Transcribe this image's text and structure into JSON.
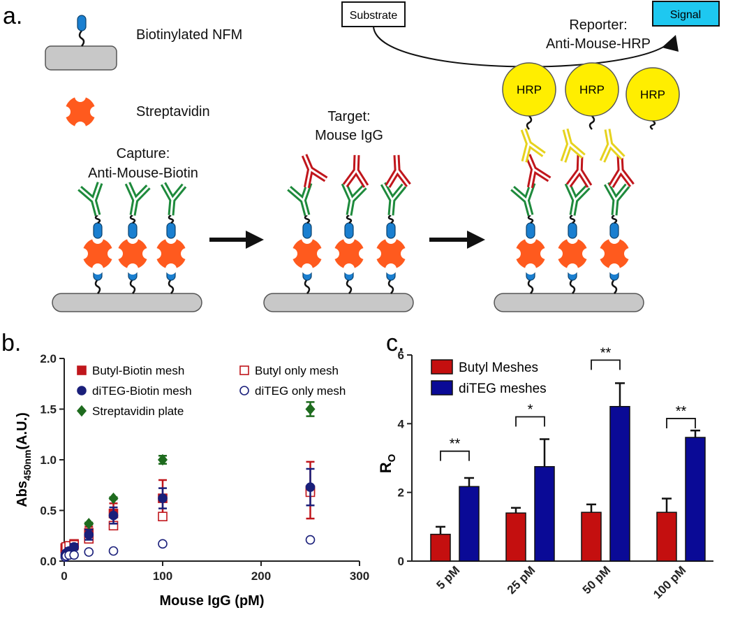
{
  "panel_labels": [
    "a.",
    "b.",
    "c."
  ],
  "diagram": {
    "legend": [
      "Biotinylated NFM",
      "Streptavidin"
    ],
    "capture": [
      "Capture:",
      "Anti-Mouse-Biotin"
    ],
    "target": [
      "Target:",
      "Mouse IgG"
    ],
    "reporter": [
      "Reporter:",
      "Anti-Mouse-HRP"
    ],
    "substrate": "Substrate",
    "signal": "Signal",
    "hrp": [
      "HRP",
      "HRP",
      "HRP"
    ]
  },
  "chart_data": [
    {
      "type": "scatter",
      "xlabel": "Mouse IgG (pM)",
      "ylabel": "Abs",
      "ylabel_sub": "450nm",
      "ylabel_suffix": "(A.U.)",
      "xlim": [
        0,
        300
      ],
      "xticks": [
        0,
        100,
        200,
        300
      ],
      "ylim": [
        0,
        2
      ],
      "yticks": [
        {
          "value": 0,
          "label": "0.0"
        },
        {
          "value": 0.5,
          "label": "0.5"
        },
        {
          "value": 1,
          "label": "1.0"
        },
        {
          "value": 1.5,
          "label": "1.5"
        },
        {
          "value": 2,
          "label": "2.0"
        }
      ],
      "series": [
        {
          "name": "Butyl-Biotin mesh",
          "color": "#c0161c",
          "marker": "square",
          "filled": true,
          "x": [
            1,
            2,
            5,
            10,
            25,
            50,
            100,
            250
          ],
          "values": [
            0.12,
            0.14,
            0.15,
            0.17,
            0.28,
            0.47,
            0.62,
            0.7
          ],
          "errors": [
            0.03,
            0.03,
            0.03,
            0.03,
            0.06,
            0.1,
            0.18,
            0.28
          ]
        },
        {
          "name": "Butyl only mesh",
          "color": "#c0161c",
          "marker": "square",
          "filled": false,
          "x": [
            1,
            2,
            5,
            10,
            25,
            50,
            100,
            250
          ],
          "values": [
            0.13,
            0.14,
            0.15,
            0.16,
            0.22,
            0.35,
            0.44,
            0.68
          ]
        },
        {
          "name": "diTEG-Biotin mesh",
          "color": "#1a1f7a",
          "marker": "circle",
          "filled": true,
          "x": [
            1,
            2,
            5,
            10,
            25,
            50,
            100,
            250
          ],
          "values": [
            0.06,
            0.08,
            0.1,
            0.14,
            0.26,
            0.45,
            0.62,
            0.73
          ],
          "errors": [
            0.02,
            0.02,
            0.03,
            0.03,
            0.05,
            0.08,
            0.1,
            0.18
          ]
        },
        {
          "name": "diTEG only mesh",
          "color": "#1a1f7a",
          "marker": "circle",
          "filled": false,
          "x": [
            1,
            2,
            5,
            10,
            25,
            50,
            100,
            250
          ],
          "values": [
            0.04,
            0.05,
            0.06,
            0.06,
            0.09,
            0.1,
            0.17,
            0.21
          ]
        },
        {
          "name": "Streptavidin plate",
          "color": "#1e6b1e",
          "marker": "diamond",
          "filled": true,
          "x": [
            25,
            50,
            100,
            250
          ],
          "values": [
            0.37,
            0.62,
            1.0,
            1.5
          ],
          "errors": [
            0.01,
            0.01,
            0.04,
            0.07
          ]
        }
      ]
    },
    {
      "type": "bar",
      "ylabel": "R",
      "ylabel_sub": "O",
      "categories": [
        "5 pM",
        "25 pM",
        "50 pM",
        "100 pM"
      ],
      "ylim": [
        0,
        6
      ],
      "yticks": [
        0,
        2,
        4,
        6
      ],
      "series": [
        {
          "name": "Butyl Meshes",
          "color": "#c40f0f",
          "values": [
            0.78,
            1.4,
            1.42,
            1.42
          ],
          "errors": [
            0.22,
            0.15,
            0.23,
            0.4
          ]
        },
        {
          "name": "diTEG meshes",
          "color": "#0a0a96",
          "values": [
            2.17,
            2.75,
            4.5,
            3.6
          ],
          "errors": [
            0.25,
            0.8,
            0.68,
            0.2
          ]
        }
      ],
      "significance": [
        {
          "label": "**",
          "y": 3.2
        },
        {
          "label": "*",
          "y": 4.2
        },
        {
          "label": "**",
          "y": 5.85
        },
        {
          "label": "**",
          "y": 4.15
        }
      ]
    }
  ]
}
